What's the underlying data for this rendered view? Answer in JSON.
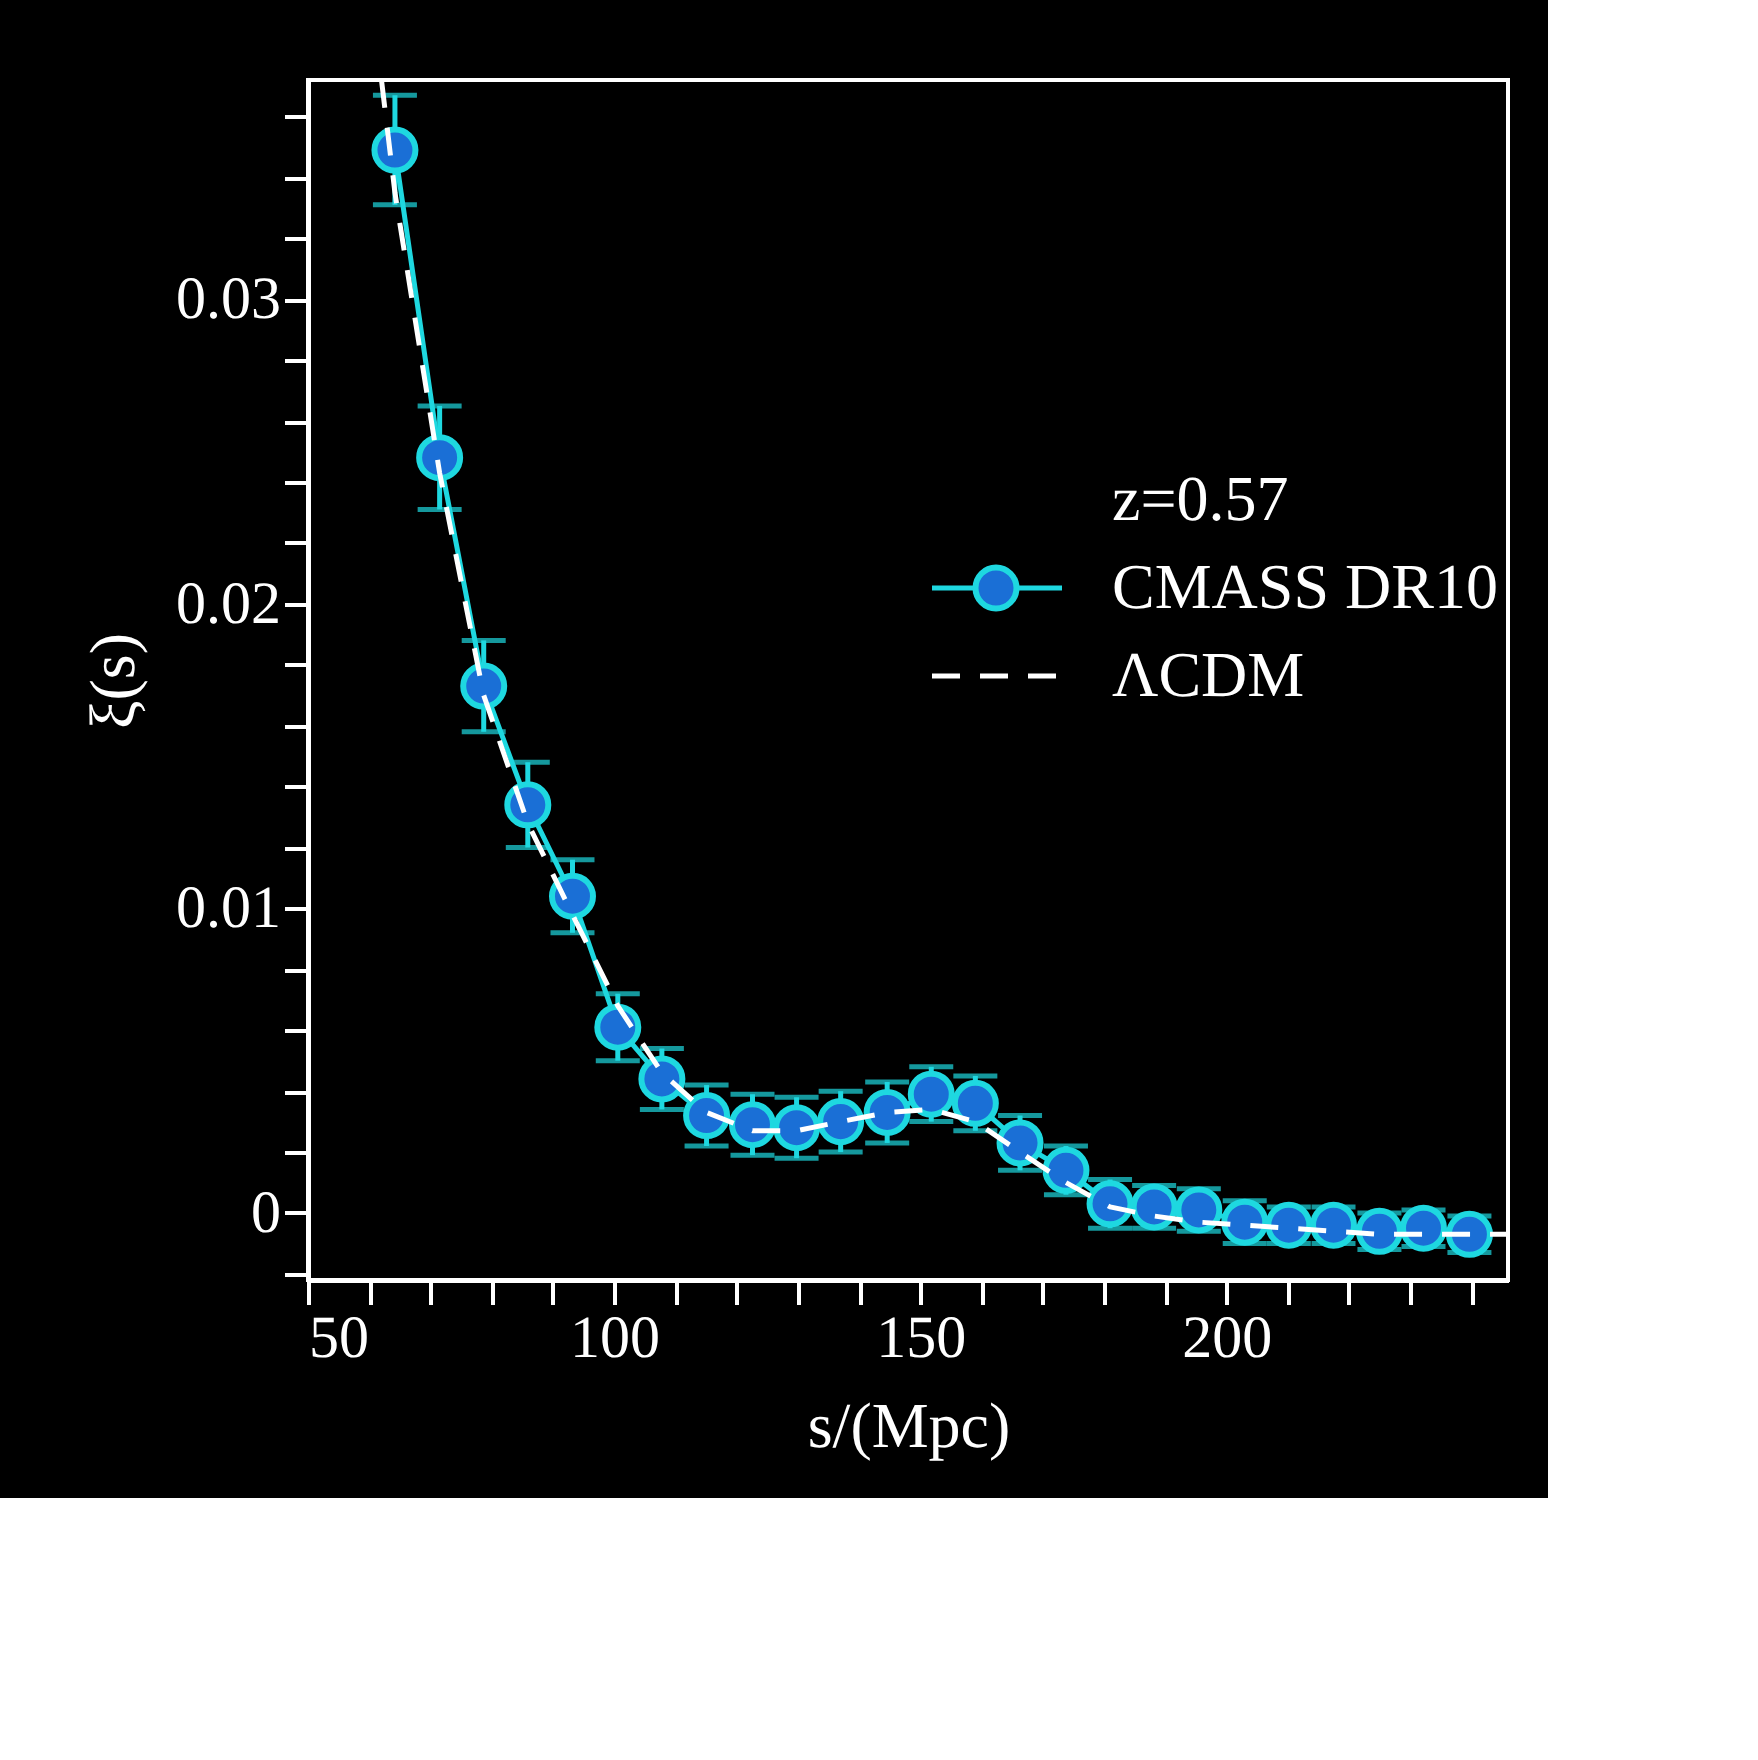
{
  "chart_data": {
    "type": "line",
    "xlabel": "s/(Mpc)",
    "ylabel": "ξ(s)",
    "xlim": [
      50,
      246
    ],
    "ylim": [
      -0.0022,
      0.0372
    ],
    "xticks": [
      50,
      {
        "value": 60,
        "label": null
      },
      {
        "value": 70,
        "label": null
      },
      {
        "value": 80,
        "label": null
      },
      {
        "value": 90,
        "label": null
      },
      100,
      {
        "value": 110,
        "label": null
      },
      {
        "value": 120,
        "label": null
      },
      {
        "value": 130,
        "label": null
      },
      {
        "value": 140,
        "label": null
      },
      150,
      {
        "value": 160,
        "label": null
      },
      {
        "value": 170,
        "label": null
      },
      {
        "value": 180,
        "label": null
      },
      {
        "value": 190,
        "label": null
      },
      200,
      {
        "value": 210,
        "label": null
      },
      {
        "value": 220,
        "label": null
      },
      {
        "value": 230,
        "label": null
      },
      {
        "value": 240,
        "label": null
      }
    ],
    "yticks": [
      {
        "value": -0.002,
        "label": null
      },
      0,
      {
        "value": 0.002,
        "label": null
      },
      {
        "value": 0.004,
        "label": null
      },
      {
        "value": 0.006,
        "label": null
      },
      {
        "value": 0.008,
        "label": null
      },
      0.01,
      {
        "value": 0.012,
        "label": null
      },
      {
        "value": 0.014,
        "label": null
      },
      {
        "value": 0.016,
        "label": null
      },
      {
        "value": 0.018,
        "label": null
      },
      0.02,
      {
        "value": 0.022,
        "label": null
      },
      {
        "value": 0.024,
        "label": null
      },
      {
        "value": 0.026,
        "label": null
      },
      {
        "value": 0.028,
        "label": null
      },
      0.03,
      {
        "value": 0.032,
        "label": null
      },
      {
        "value": 0.034,
        "label": null
      },
      {
        "value": 0.036,
        "label": null
      }
    ],
    "grid": false,
    "legend": "right",
    "legend_title": "z=0.57",
    "series": [
      {
        "name": "CMASS DR10",
        "color": "#1ed8e0",
        "marker": "circle",
        "line_style": "solid",
        "x": [
          64.2,
          71.5,
          78.7,
          85.9,
          93.2,
          100.6,
          107.8,
          115.1,
          122.6,
          129.8,
          137.0,
          144.6,
          151.8,
          159.0,
          166.3,
          173.8,
          181.0,
          188.2,
          195.5,
          203.0,
          210.2,
          217.5,
          225.0,
          232.2,
          239.7
        ],
        "values": [
          0.0349,
          0.0248,
          0.0173,
          0.0134,
          0.0104,
          0.0061,
          0.0044,
          0.0032,
          0.0029,
          0.0028,
          0.003,
          0.0033,
          0.0039,
          0.0036,
          0.0023,
          0.0014,
          0.0003,
          0.0002,
          0.0001,
          -0.0003,
          -0.0004,
          -0.0004,
          -0.0006,
          -0.0005,
          -0.0007
        ],
        "errors": [
          0.0018,
          0.0017,
          0.0015,
          0.0014,
          0.0012,
          0.0011,
          0.001,
          0.001,
          0.001,
          0.001,
          0.001,
          0.001,
          0.0009,
          0.0009,
          0.0009,
          0.0008,
          0.0008,
          0.0007,
          0.0007,
          0.0007,
          0.0006,
          0.0006,
          0.0006,
          0.0006,
          0.0006
        ]
      },
      {
        "name": "ΛCDM",
        "color": "#ffffff",
        "marker": "none",
        "line_style": "dashed",
        "x": [
          62,
          64.2,
          71.5,
          78.7,
          85.9,
          93.2,
          100.6,
          107.8,
          115.1,
          122.6,
          129.8,
          137.0,
          144.6,
          151.8,
          159.0,
          166.3,
          173.8,
          181.0,
          188.2,
          195.5,
          203.0,
          210.2,
          217.5,
          225.0,
          232.2,
          239.7,
          246
        ],
        "values": [
          0.0372,
          0.0335,
          0.0243,
          0.017,
          0.0128,
          0.0098,
          0.0068,
          0.0046,
          0.0033,
          0.0027,
          0.0027,
          0.003,
          0.0033,
          0.0034,
          0.003,
          0.002,
          0.001,
          0.0002,
          -0.0001,
          -0.0003,
          -0.0004,
          -0.0005,
          -0.0006,
          -0.0007,
          -0.0007,
          -0.0007,
          -0.0007
        ]
      }
    ]
  }
}
